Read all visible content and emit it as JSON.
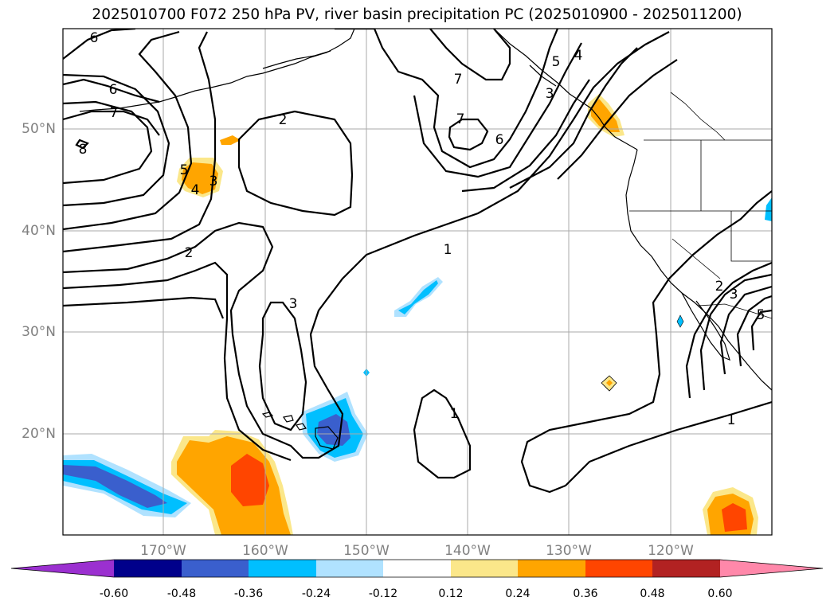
{
  "title": "2025010700 F072 250 hPa PV, river basin precipitation PC (2025010900 - 2025011200)",
  "axes": {
    "lat_labels": [
      "50°N",
      "40°N",
      "30°N",
      "20°N"
    ],
    "lon_labels": [
      "170°W",
      "160°W",
      "150°W",
      "140°W",
      "130°W",
      "120°W"
    ]
  },
  "contour_labels": [
    "6",
    "6",
    "7",
    "8",
    "2",
    "5",
    "4",
    "3",
    "2",
    "3",
    "7",
    "7",
    "6",
    "5",
    "4",
    "3",
    "1",
    "1",
    "1",
    "3",
    "2",
    "5"
  ],
  "colorbar": {
    "ticks": [
      "-0.60",
      "-0.48",
      "-0.36",
      "-0.24",
      "-0.12",
      "0.12",
      "0.24",
      "0.36",
      "0.48",
      "0.60"
    ],
    "colors": [
      "#9b30d0",
      "#00008b",
      "#3a5fcd",
      "#00bfff",
      "#b0e2ff",
      "#ffffff",
      "#fbe78a",
      "#ffa500",
      "#ff4500",
      "#b22222",
      "#ff88aa"
    ]
  }
}
